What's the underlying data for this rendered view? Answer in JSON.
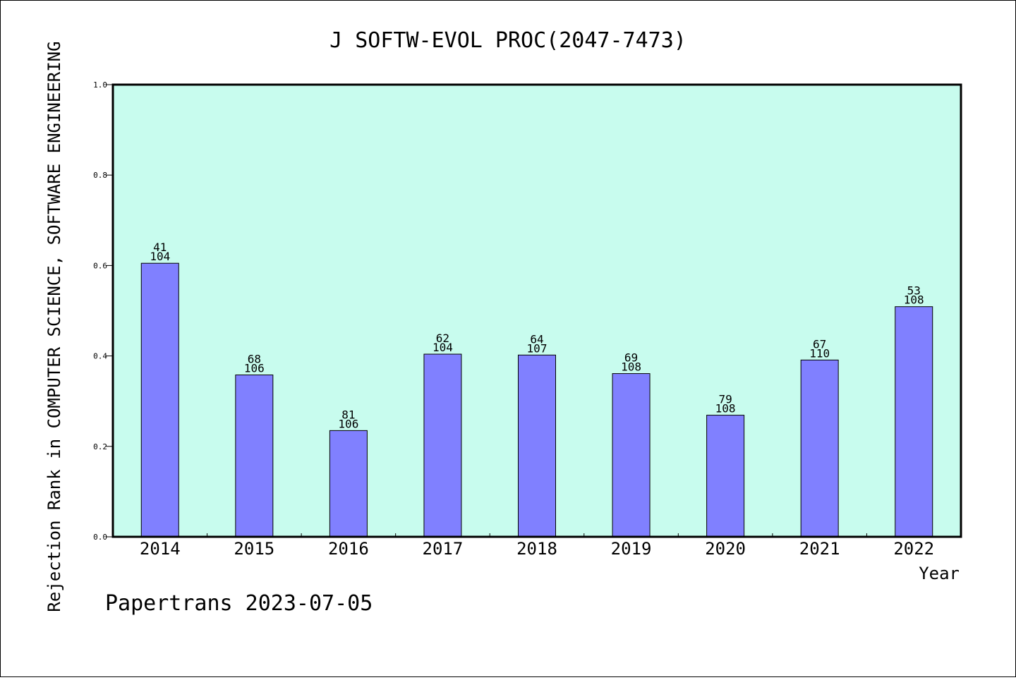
{
  "chart_data": {
    "type": "bar",
    "title": "J SOFTW-EVOL PROC(2047-7473)",
    "xlabel": "Year",
    "ylabel": "Rejection Rank in COMPUTER SCIENCE, SOFTWARE ENGINEERING",
    "ylim": [
      0,
      1.0
    ],
    "yticks": [
      "0.0",
      "0.2",
      "0.4",
      "0.6",
      "0.8",
      "1.0"
    ],
    "categories": [
      "2014",
      "2015",
      "2016",
      "2017",
      "2018",
      "2019",
      "2020",
      "2021",
      "2022"
    ],
    "values": [
      0.605,
      0.358,
      0.235,
      0.404,
      0.402,
      0.361,
      0.269,
      0.391,
      0.509
    ],
    "labels_top": [
      "41",
      "68",
      "81",
      "62",
      "64",
      "69",
      "79",
      "67",
      "53"
    ],
    "labels_bottom": [
      "104",
      "106",
      "106",
      "104",
      "107",
      "108",
      "108",
      "110",
      "108"
    ],
    "grid": false,
    "colors": {
      "plot_bg": "#c8fcee",
      "bar": "#8080ff",
      "bar_edge": "#000000"
    }
  },
  "footer": "Papertrans 2023-07-05"
}
